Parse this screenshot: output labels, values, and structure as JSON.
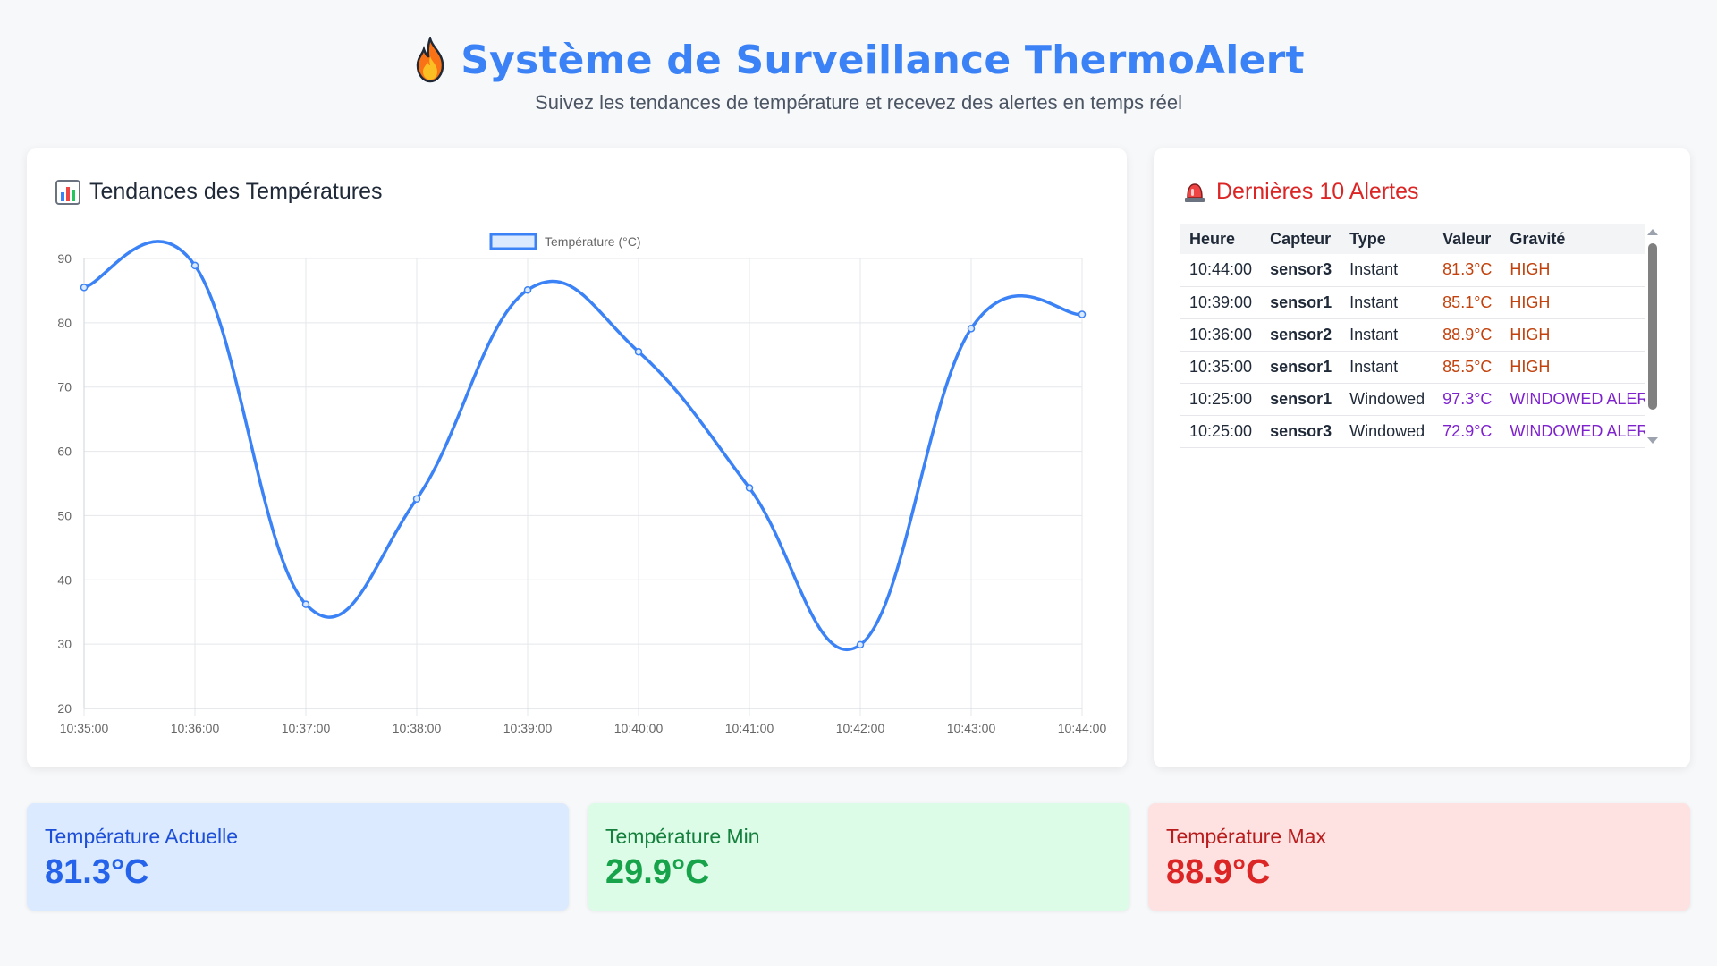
{
  "header": {
    "title": "Système de Surveillance ThermoAlert",
    "subtitle": "Suivez les tendances de température et recevez des alertes en temps réel",
    "icon": "flame-icon"
  },
  "chart_card": {
    "heading": "Tendances des Températures",
    "icon": "bar-chart-icon"
  },
  "chart_data": {
    "type": "line",
    "title": "",
    "xlabel": "",
    "ylabel": "",
    "x": [
      "10:35:00",
      "10:36:00",
      "10:37:00",
      "10:38:00",
      "10:39:00",
      "10:40:00",
      "10:41:00",
      "10:42:00",
      "10:43:00",
      "10:44:00"
    ],
    "ylim": [
      20,
      90
    ],
    "yticks": [
      20,
      30,
      40,
      50,
      60,
      70,
      80,
      90
    ],
    "grid": true,
    "legend_position": "top",
    "series": [
      {
        "name": "Température (°C)",
        "color": "#3b82f6",
        "fill": "#dbeafe",
        "values": [
          85.5,
          88.9,
          36.2,
          52.6,
          85.1,
          75.5,
          54.3,
          29.9,
          79.1,
          81.3
        ]
      }
    ]
  },
  "alerts_card": {
    "heading": "Dernières 10 Alertes",
    "icon": "siren-icon",
    "columns": [
      "Heure",
      "Capteur",
      "Type",
      "Valeur",
      "Gravité"
    ],
    "rows": [
      {
        "time": "10:44:00",
        "sensor": "sensor3",
        "type": "Instant",
        "value": "81.3°C",
        "severity": "HIGH"
      },
      {
        "time": "10:39:00",
        "sensor": "sensor1",
        "type": "Instant",
        "value": "85.1°C",
        "severity": "HIGH"
      },
      {
        "time": "10:36:00",
        "sensor": "sensor2",
        "type": "Instant",
        "value": "88.9°C",
        "severity": "HIGH"
      },
      {
        "time": "10:35:00",
        "sensor": "sensor1",
        "type": "Instant",
        "value": "85.5°C",
        "severity": "HIGH"
      },
      {
        "time": "10:25:00",
        "sensor": "sensor1",
        "type": "Windowed",
        "value": "97.3°C",
        "severity": "WINDOWED ALERT"
      },
      {
        "time": "10:25:00",
        "sensor": "sensor3",
        "type": "Windowed",
        "value": "72.9°C",
        "severity": "WINDOWED ALERT"
      }
    ]
  },
  "stats": {
    "current": {
      "label": "Température Actuelle",
      "value": "81.3°C"
    },
    "min": {
      "label": "Température Min",
      "value": "29.9°C"
    },
    "max": {
      "label": "Température Max",
      "value": "88.9°C"
    }
  },
  "colors": {
    "accent": "#3b82f6",
    "alert_red": "#dc2626",
    "high": "#c2410c",
    "windowed": "#7e22ce"
  }
}
